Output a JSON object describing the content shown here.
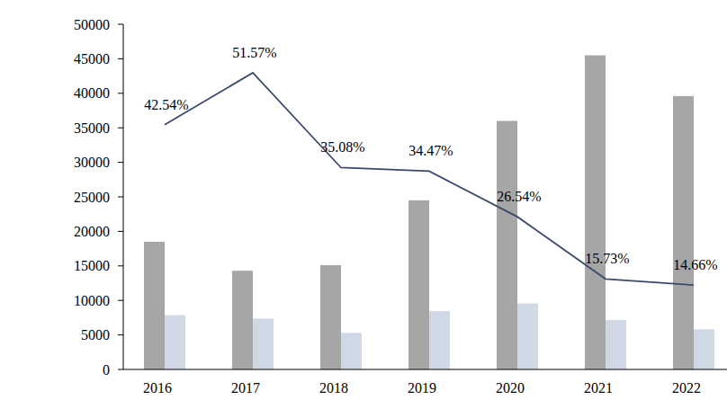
{
  "chart_data": {
    "type": "bar",
    "categories": [
      "2016",
      "2017",
      "2018",
      "2019",
      "2020",
      "2021",
      "2022"
    ],
    "series": [
      {
        "type": "bar",
        "color": "#a6a6a6",
        "values": [
          18500,
          14300,
          15100,
          24500,
          36000,
          45500,
          39600
        ]
      },
      {
        "type": "bar",
        "color": "#cfd9e5",
        "values": [
          7870,
          7370,
          5300,
          8450,
          9550,
          7160,
          5810
        ]
      },
      {
        "type": "line",
        "axis": "y2",
        "color": "#3b4a6b",
        "data_labels": true,
        "values": [
          42.54,
          51.57,
          35.08,
          34.47,
          26.54,
          15.73,
          14.66
        ],
        "value_labels": [
          "42.54%",
          "51.57%",
          "35.08%",
          "34.47%",
          "26.54%",
          "15.73%",
          "14.66%"
        ]
      }
    ],
    "ylim": [
      0,
      50000
    ],
    "yticks": [
      0,
      5000,
      10000,
      15000,
      20000,
      25000,
      30000,
      35000,
      40000,
      45000,
      50000
    ],
    "y2lim": [
      0,
      60
    ],
    "grid": false
  }
}
